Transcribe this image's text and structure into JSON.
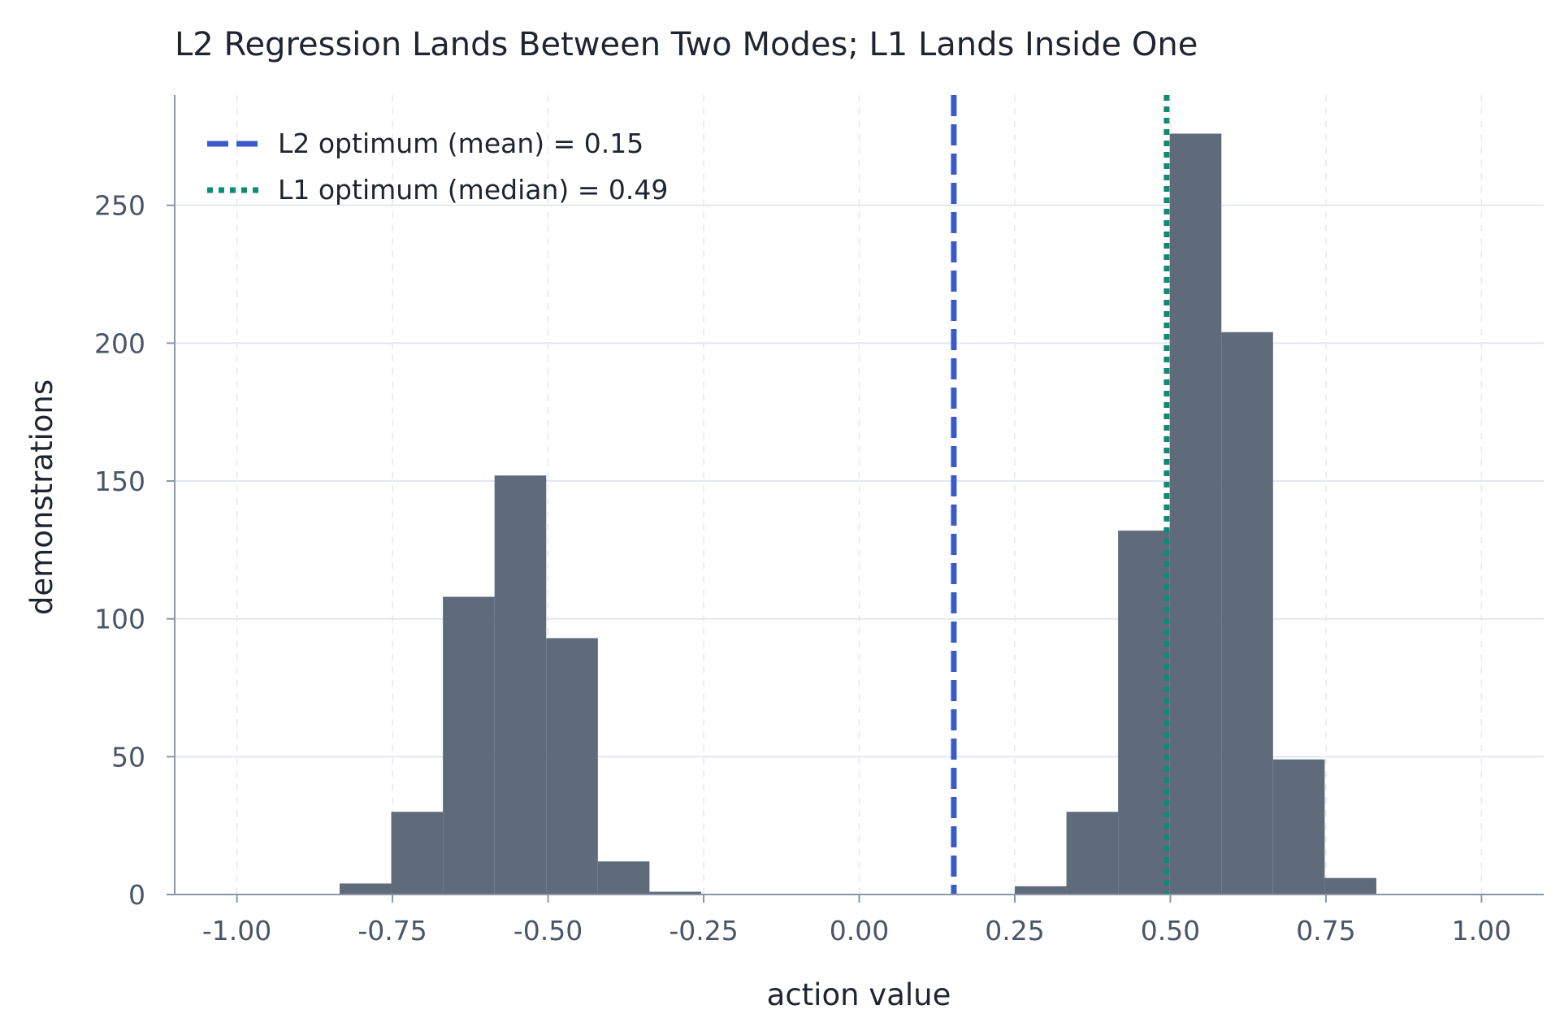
{
  "chart_data": {
    "type": "bar",
    "title": "L2 Regression Lands Between Two Modes; L1 Lands Inside One",
    "xlabel": "action value",
    "ylabel": "demonstrations",
    "xlim": [
      -1.1,
      1.1
    ],
    "ylim": [
      0,
      290
    ],
    "xticks": [
      -1.0,
      -0.75,
      -0.5,
      -0.25,
      0.0,
      0.25,
      0.5,
      0.75,
      1.0
    ],
    "xtick_labels": [
      "-1.00",
      "-0.75",
      "-0.50",
      "-0.25",
      "0.00",
      "0.25",
      "0.50",
      "0.75",
      "1.00"
    ],
    "yticks": [
      0,
      50,
      100,
      150,
      200,
      250
    ],
    "ytick_labels": [
      "0",
      "50",
      "100",
      "150",
      "200",
      "250"
    ],
    "grid": true,
    "legend_position": "top-left",
    "bar_color": "#5f6b7b",
    "bins": [
      {
        "start": -0.835,
        "end": -0.752,
        "count": 4
      },
      {
        "start": -0.752,
        "end": -0.669,
        "count": 30
      },
      {
        "start": -0.669,
        "end": -0.586,
        "count": 108
      },
      {
        "start": -0.586,
        "end": -0.503,
        "count": 152
      },
      {
        "start": -0.503,
        "end": -0.42,
        "count": 93
      },
      {
        "start": -0.42,
        "end": -0.337,
        "count": 12
      },
      {
        "start": -0.337,
        "end": -0.254,
        "count": 1
      },
      {
        "start": 0.25,
        "end": 0.333,
        "count": 3
      },
      {
        "start": 0.333,
        "end": 0.416,
        "count": 30
      },
      {
        "start": 0.416,
        "end": 0.499,
        "count": 132
      },
      {
        "start": 0.499,
        "end": 0.582,
        "count": 276
      },
      {
        "start": 0.582,
        "end": 0.665,
        "count": 204
      },
      {
        "start": 0.665,
        "end": 0.748,
        "count": 49
      },
      {
        "start": 0.748,
        "end": 0.831,
        "count": 6
      }
    ],
    "reference_lines": [
      {
        "label": "L2 optimum (mean) = 0.15",
        "x": 0.152,
        "style": "dashed",
        "color": "#3a5bc7"
      },
      {
        "label": "L1 optimum (median) = 0.49",
        "x": 0.494,
        "style": "dotted",
        "color": "#0f8a74"
      }
    ]
  }
}
